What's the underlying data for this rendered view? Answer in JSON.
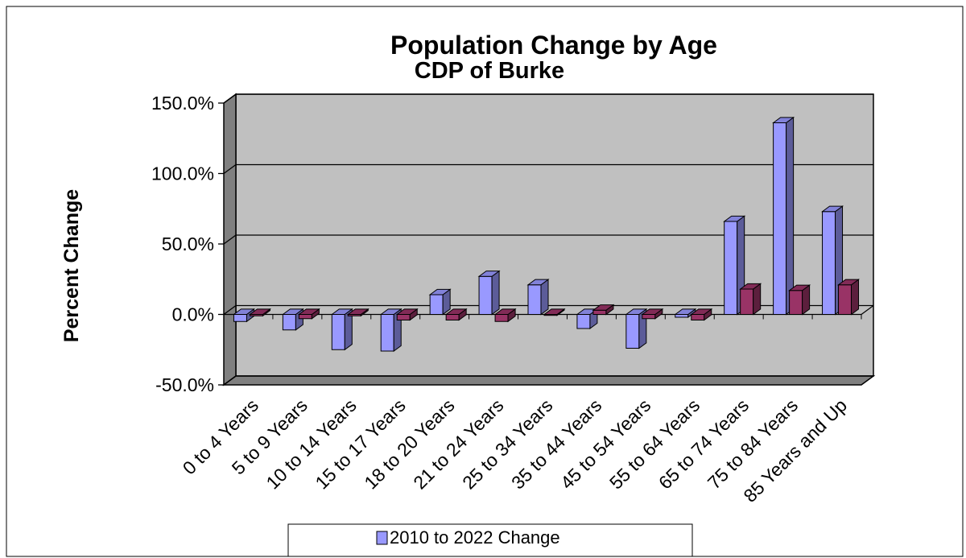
{
  "chart_data": {
    "type": "bar",
    "title": "Population Change by Age",
    "subtitle": "CDP of Burke",
    "ylabel": "Percent Change",
    "xlabel": "",
    "ylim": [
      -50,
      150
    ],
    "yticks": [
      150,
      100,
      50,
      0,
      -50
    ],
    "ytick_labels": [
      "150.0%",
      "100.0%",
      "50.0%",
      "0.0%",
      "-50.0%"
    ],
    "grid": true,
    "categories": [
      "0 to 4 Years",
      "5 to 9 Years",
      "10 to 14 Years",
      "15 to 17 Years",
      "18 to 20 Years",
      "21 to 24 Years",
      "25 to 34 Years",
      "35 to 44 Years",
      "45 to 54 Years",
      "55 to 64 Years",
      "65 to 74 Years",
      "75 to 84 Years",
      "85 Years and Up"
    ],
    "series": [
      {
        "name": "2010 to 2022 Change",
        "color": "#9999ff",
        "values": [
          -5,
          -11,
          -25,
          -26,
          14,
          27,
          21,
          -10,
          -24,
          -2,
          66,
          136,
          73
        ]
      },
      {
        "name": "",
        "color": "#993366",
        "values": [
          -1,
          -3,
          -1,
          -4,
          -4,
          -5,
          0,
          3,
          -3,
          -4,
          18,
          17,
          21
        ]
      }
    ],
    "legend_position": "bottom"
  },
  "colors": {
    "plot_back": "#c0c0c0",
    "floor": "#808080",
    "border": "#000000"
  }
}
